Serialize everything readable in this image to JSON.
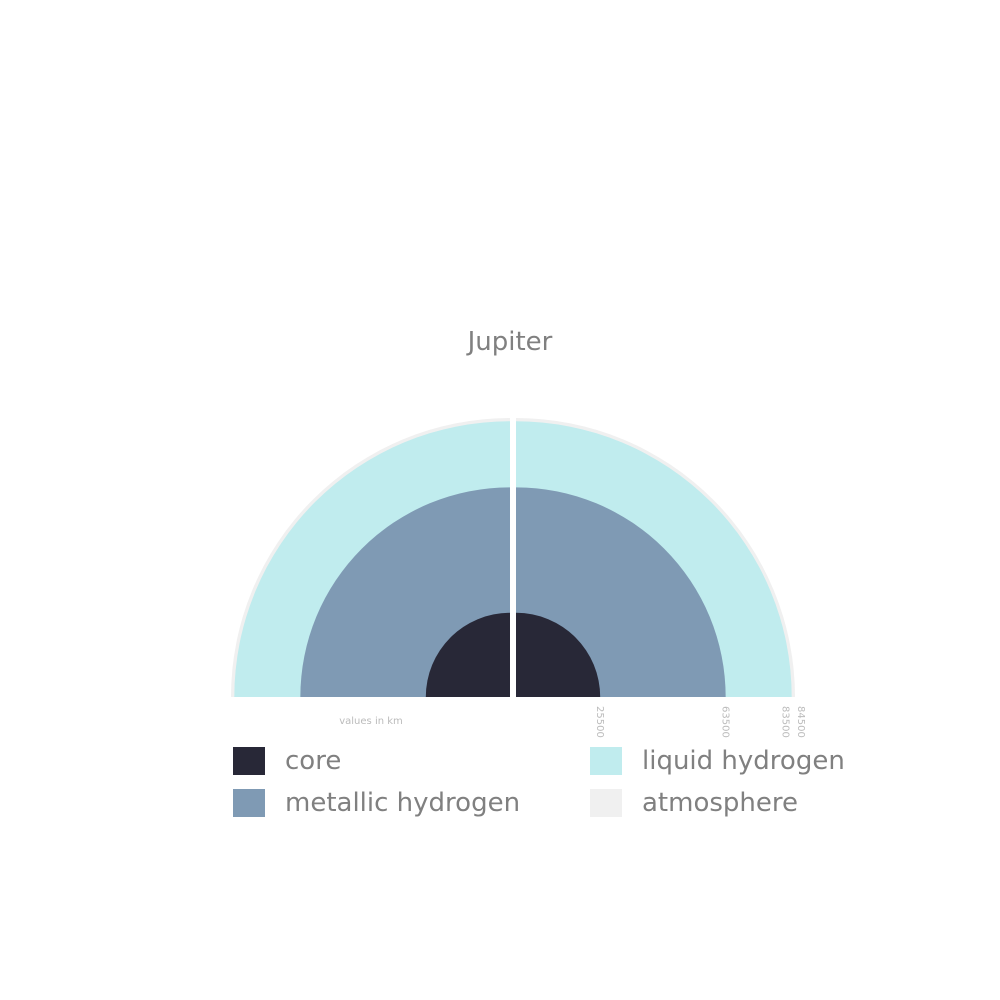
{
  "chart_data": {
    "type": "layered-semicircle",
    "title": "Jupiter",
    "unit_note": "values in km",
    "layers": [
      {
        "name": "core",
        "radius": 25500,
        "color": "#282837"
      },
      {
        "name": "metallic hydrogen",
        "radius": 63500,
        "color": "#7f9ab4"
      },
      {
        "name": "liquid hydrogen",
        "radius": 83500,
        "color": "#c0ecee"
      },
      {
        "name": "atmosphere",
        "radius": 84500,
        "color": "#f0f0f0"
      }
    ],
    "tick_labels": [
      "25500",
      "63500",
      "83500",
      "84500"
    ],
    "legend_placement": "bottom"
  }
}
